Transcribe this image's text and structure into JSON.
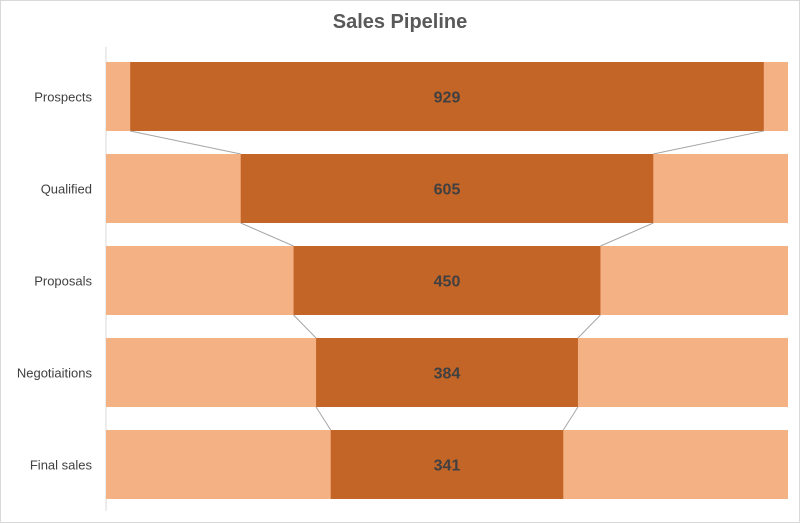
{
  "chart_data": {
    "type": "bar",
    "title": "Sales Pipeline",
    "categories": [
      "Prospects",
      "Qualified",
      "Proposals",
      "Negotiaitions",
      "Final sales"
    ],
    "values": [
      929,
      605,
      450,
      384,
      341
    ],
    "xlim": [
      0,
      1000
    ],
    "orientation": "horizontal",
    "style": "funnel",
    "colors": {
      "bar": "#c46528",
      "track": "#f4b183",
      "connector": "#a6a6a6"
    }
  }
}
